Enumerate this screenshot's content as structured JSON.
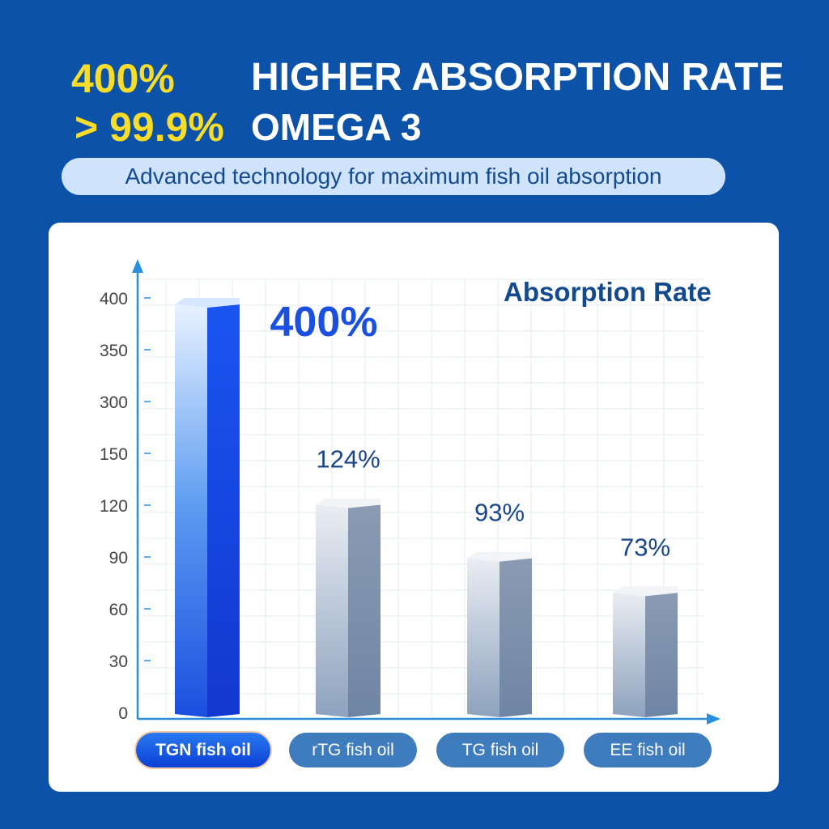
{
  "header": {
    "stat1_value": "400%",
    "stat1_label": "HIGHER ABSORPTION RATE",
    "stat2_value": "> 99.9%",
    "stat2_label": "OMEGA 3",
    "subtitle": "Advanced technology for maximum fish oil absorption"
  },
  "colors": {
    "background": "#0b52a8",
    "highlight": "#f8dc2a",
    "primary_bar": "#1a4fe0",
    "other_bars": "#8a9fba"
  },
  "chart_data": {
    "type": "bar",
    "title": "Absorption Rate",
    "categories": [
      "TGN fish oil",
      "rTG fish oil",
      "TG fish oil",
      "EE fish oil"
    ],
    "values": [
      400,
      124,
      93,
      73
    ],
    "data_labels": [
      "400%",
      "124%",
      "93%",
      "73%"
    ],
    "y_ticks": [
      0,
      30,
      60,
      90,
      120,
      150,
      300,
      350,
      400
    ],
    "y_tick_labels": [
      "0",
      "30",
      "60",
      "90",
      "120",
      "150",
      "300",
      "350",
      "400"
    ],
    "ylim": [
      0,
      400
    ],
    "grid": true,
    "highlighted_category": "TGN fish oil"
  }
}
